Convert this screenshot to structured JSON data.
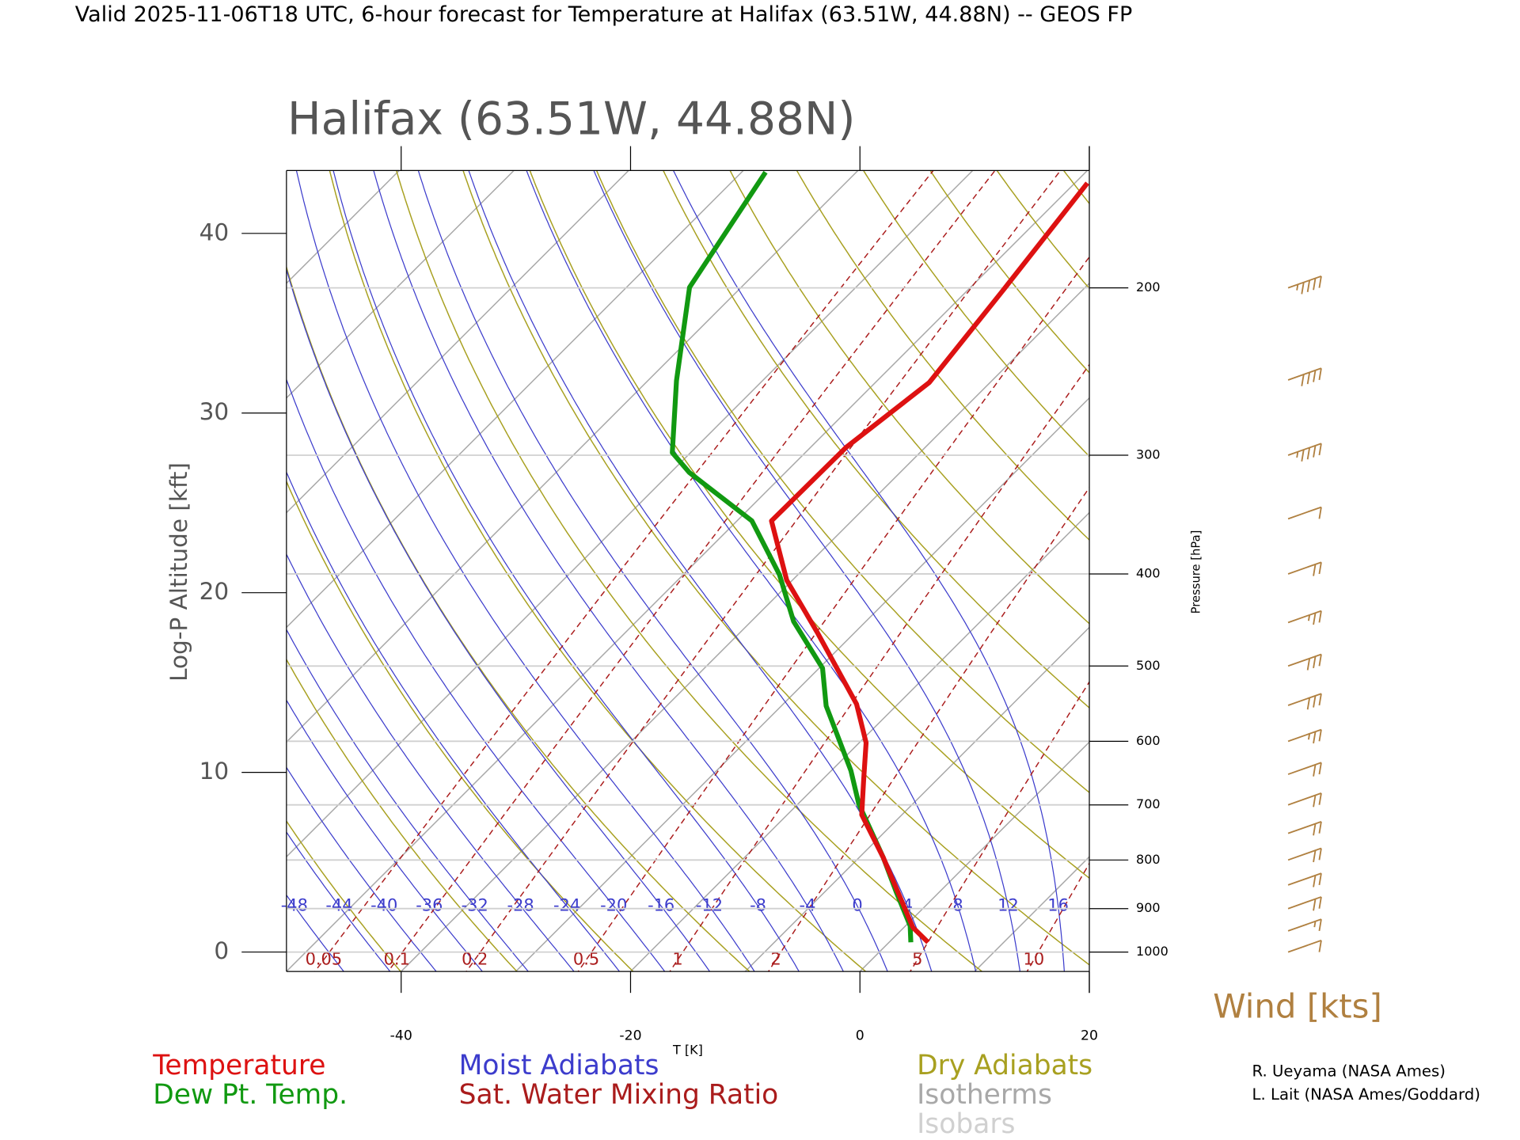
{
  "chart_data": {
    "type": "skewt",
    "title": "Valid 2025-11-06T18 UTC, 6-hour forecast for Temperature at Halifax (63.51W, 44.88N) -- GEOS FP",
    "subtitle": "Halifax (63.51W, 44.88N)",
    "x_label": "T [K]",
    "y_label": "Log-P Altitude [kft]",
    "y2_label": "Pressure [hPa]",
    "xlim": [
      -50,
      20
    ],
    "xticks": [
      -40,
      -20,
      0,
      20
    ],
    "ylim": [
      -1.08,
      43.5
    ],
    "yticks": [
      0,
      10,
      20,
      30,
      40
    ],
    "y2lim": [
      1048,
      150.5
    ],
    "y2scale": "log",
    "y2ticks": [
      1000,
      900,
      800,
      700,
      600,
      500,
      400,
      300,
      200
    ],
    "series": [
      {
        "name": "Temperature",
        "color": "#dd1111",
        "x": [
          3.4,
          0.8,
          -7.9,
          -13.5,
          -16.4,
          -19.4,
          -23.6,
          -33.3,
          -40.5,
          -47.0,
          -46.9,
          -45.3,
          -46.9,
          -48.9
        ],
        "values": [
          0.54,
          1.36,
          5.26,
          7.64,
          9.6,
          11.65,
          13.8,
          17.8,
          20.7,
          24.0,
          28.1,
          31.7,
          36.8,
          42.8
        ]
      },
      {
        "name": "Dew Pt. Temp.",
        "color": "#119911",
        "x": [
          1.9,
          0.4,
          -3.8,
          -7.9,
          -14.7,
          -18.3,
          -26.1,
          -29.7,
          -36.3,
          -41.6,
          -48.7,
          -58.4,
          -61.6,
          -67.5,
          -74.5,
          -77.9
        ],
        "values": [
          0.54,
          1.46,
          3.36,
          5.26,
          8.24,
          10.1,
          13.7,
          15.8,
          18.4,
          21.0,
          24.0,
          26.7,
          27.8,
          31.8,
          37.0,
          43.4
        ]
      }
    ],
    "background": [
      {
        "name": "Moist Adiabats",
        "color": "#3c3ccc",
        "labels": [
          -48,
          -44,
          -40,
          -36,
          -32,
          -28,
          -24,
          -20,
          -16,
          -12,
          -8,
          -4,
          0,
          4,
          8,
          12,
          16
        ]
      },
      {
        "name": "Sat. Water Mixing Ratio",
        "color": "#aa1c1c",
        "labels": [
          0.05,
          0.1,
          0.2,
          0.5,
          1,
          2,
          5,
          10
        ]
      },
      {
        "name": "Dry Adiabats",
        "color": "#a8a020"
      },
      {
        "name": "Isotherms",
        "color": "#a8a8a8"
      },
      {
        "name": "Isobars",
        "color": "#d0d0d0"
      }
    ],
    "wind": {
      "title": "Wind [kts]",
      "color": "#b08040",
      "pressure": [
        200,
        250,
        300,
        350,
        400,
        450,
        500,
        550,
        600,
        650,
        700,
        750,
        800,
        850,
        900,
        950,
        1000
      ],
      "speed": [
        45,
        40,
        45,
        10,
        20,
        25,
        30,
        30,
        25,
        20,
        20,
        20,
        20,
        20,
        20,
        15,
        10
      ]
    },
    "credits": [
      "R. Ueyama (NASA Ames)",
      "L. Lait (NASA Ames/Goddard)"
    ]
  }
}
